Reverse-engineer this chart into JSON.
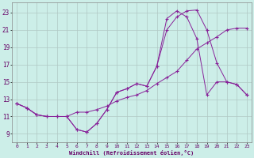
{
  "xlabel": "Windchill (Refroidissement éolien,°C)",
  "background_color": "#cceee8",
  "grid_color": "#b0c8c4",
  "line_color": "#882299",
  "x_ticks": [
    0,
    1,
    2,
    3,
    4,
    5,
    6,
    7,
    8,
    9,
    10,
    11,
    12,
    13,
    14,
    15,
    16,
    17,
    18,
    19,
    20,
    21,
    22,
    23
  ],
  "y_ticks": [
    9,
    11,
    13,
    15,
    17,
    19,
    21,
    23
  ],
  "xlim": [
    -0.5,
    23.5
  ],
  "ylim": [
    8.0,
    24.2
  ],
  "line1_y": [
    12.5,
    12.0,
    11.2,
    11.0,
    11.0,
    11.0,
    9.5,
    9.2,
    10.2,
    11.8,
    13.8,
    14.2,
    14.8,
    14.5,
    16.8,
    21.0,
    22.5,
    23.2,
    23.3,
    21.0,
    17.2,
    15.0,
    14.7,
    13.5
  ],
  "line2_y": [
    12.5,
    12.0,
    11.2,
    11.0,
    11.0,
    11.0,
    11.5,
    11.5,
    11.8,
    12.2,
    12.8,
    13.2,
    13.5,
    14.0,
    14.8,
    15.5,
    16.2,
    17.5,
    18.8,
    19.5,
    20.2,
    21.0,
    21.2,
    21.2
  ],
  "line3_y": [
    12.5,
    12.0,
    11.2,
    11.0,
    11.0,
    11.0,
    9.5,
    9.2,
    10.2,
    11.8,
    13.8,
    14.2,
    14.8,
    14.5,
    16.8,
    22.3,
    23.2,
    22.5,
    20.0,
    13.5,
    15.0,
    15.0,
    14.7,
    13.5
  ]
}
